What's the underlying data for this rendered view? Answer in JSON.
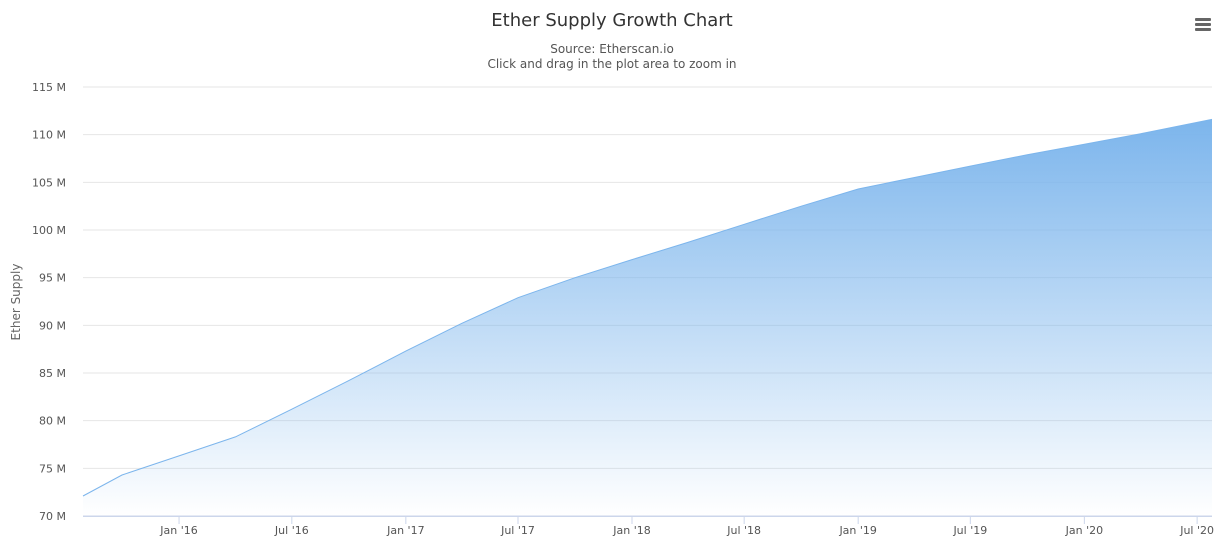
{
  "header": {
    "title": "Ether Supply Growth Chart",
    "subtitle": "Source: Etherscan.io",
    "hint": "Click and drag in the plot area to zoom in",
    "menu_icon": "hamburger-menu-icon"
  },
  "chart_data": {
    "type": "area",
    "title": "Ether Supply Growth Chart",
    "subtitle": "Source: Etherscan.io",
    "xlabel": "",
    "ylabel": "Ether Supply",
    "x_ticks": [
      "Jan '16",
      "Jul '16",
      "Jan '17",
      "Jul '17",
      "Jan '18",
      "Jul '18",
      "Jan '19",
      "Jul '19",
      "Jan '20",
      "Jul '20"
    ],
    "y_ticks": [
      "70 M",
      "75 M",
      "80 M",
      "85 M",
      "90 M",
      "95 M",
      "100 M",
      "105 M",
      "110 M",
      "115 M"
    ],
    "ylim": [
      70,
      115
    ],
    "xlim": [
      "2015-07-30",
      "2020-07-25"
    ],
    "grid": true,
    "colors": {
      "line": "#7cb5ec",
      "fill_top": "#7cb5ec",
      "fill_bottom": "#ffffff",
      "grid": "#e6e6e6",
      "axis": "#ccd6eb"
    },
    "series": [
      {
        "points": [
          [
            "2015-07-30",
            72.1
          ],
          [
            "2015-10-01",
            74.3
          ],
          [
            "2016-01-01",
            76.3
          ],
          [
            "2016-04-01",
            78.3
          ],
          [
            "2016-07-01",
            81.2
          ],
          [
            "2016-10-01",
            84.2
          ],
          [
            "2017-01-01",
            87.3
          ],
          [
            "2017-04-01",
            90.2
          ],
          [
            "2017-07-01",
            92.9
          ],
          [
            "2017-10-01",
            95.0
          ],
          [
            "2018-01-01",
            96.9
          ],
          [
            "2018-04-01",
            98.7
          ],
          [
            "2018-07-01",
            100.6
          ],
          [
            "2018-10-01",
            102.5
          ],
          [
            "2019-01-01",
            104.3
          ],
          [
            "2019-04-01",
            105.5
          ],
          [
            "2019-07-01",
            106.7
          ],
          [
            "2019-10-01",
            107.9
          ],
          [
            "2020-01-01",
            109.0
          ],
          [
            "2020-04-01",
            110.1
          ],
          [
            "2020-07-25",
            111.6
          ]
        ]
      }
    ]
  }
}
